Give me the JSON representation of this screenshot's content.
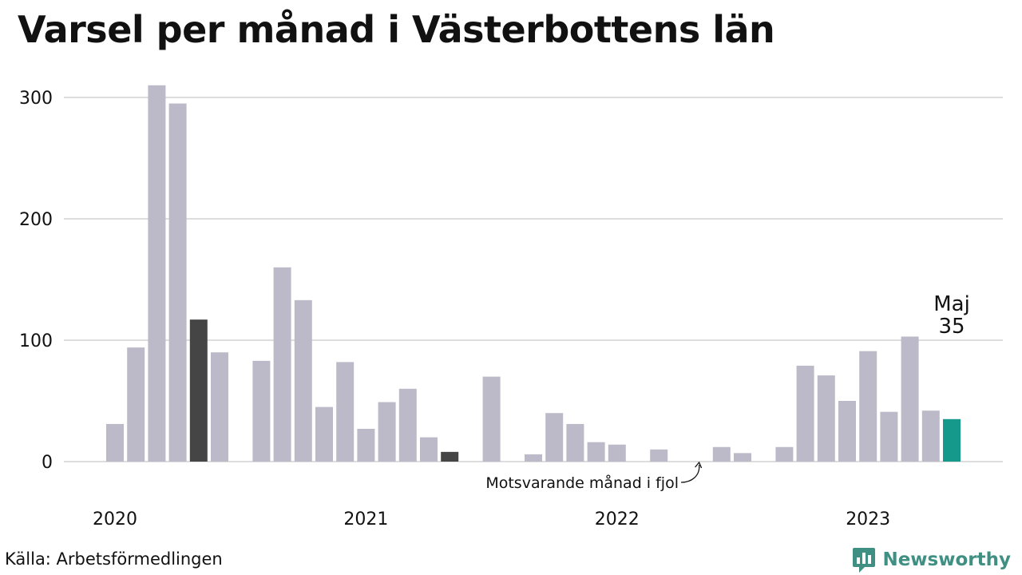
{
  "title": "Varsel per månad i Västerbottens län",
  "source": "Källa: Arbetsförmedlingen",
  "brand": {
    "name": "Newsworthy",
    "logo_icon": "newsworthy-bar-chart-icon"
  },
  "colors": {
    "bar": "#bcbac8",
    "same_month_last_year": "#454545",
    "current": "#15998a",
    "grid": "#dddddd",
    "brand": "#3f8f83"
  },
  "chart_data": {
    "type": "bar",
    "title": "Varsel per månad i Västerbottens län",
    "xlabel": "",
    "ylabel": "",
    "ylim": [
      0,
      330
    ],
    "yticks": [
      0,
      100,
      200,
      300
    ],
    "grid": true,
    "year_labels": [
      "2020",
      "2021",
      "2022",
      "2023"
    ],
    "categories": [
      "2020-01",
      "2020-02",
      "2020-03",
      "2020-04",
      "2020-05",
      "2020-06",
      "2020-07",
      "2020-08",
      "2020-09",
      "2020-10",
      "2020-11",
      "2020-12",
      "2021-01",
      "2021-02",
      "2021-03",
      "2021-04",
      "2021-05",
      "2021-06",
      "2021-07",
      "2021-08",
      "2021-09",
      "2021-10",
      "2021-11",
      "2021-12",
      "2022-01",
      "2022-02",
      "2022-03",
      "2022-04",
      "2022-05",
      "2022-06",
      "2022-07",
      "2022-08",
      "2022-09",
      "2022-10",
      "2022-11",
      "2022-12",
      "2023-01",
      "2023-02",
      "2023-03",
      "2023-04",
      "2023-05"
    ],
    "values": [
      31,
      94,
      310,
      295,
      117,
      90,
      0,
      83,
      160,
      133,
      45,
      82,
      27,
      49,
      60,
      20,
      8,
      0,
      70,
      0,
      6,
      40,
      31,
      16,
      14,
      0,
      10,
      0,
      0,
      12,
      7,
      0,
      12,
      79,
      71,
      50,
      91,
      41,
      103,
      42,
      35
    ],
    "highlight": [
      {
        "index": 4,
        "role": "same_month_last_year"
      },
      {
        "index": 16,
        "role": "same_month_last_year"
      },
      {
        "index": 28,
        "role": "same_month_last_year"
      },
      {
        "index": 40,
        "role": "current"
      }
    ],
    "annotations": [
      {
        "text": "Maj",
        "target_index": 40
      },
      {
        "text": "35",
        "target_index": 40
      },
      {
        "text": "Motsvarande månad i fjol",
        "target_index": 28
      }
    ]
  }
}
